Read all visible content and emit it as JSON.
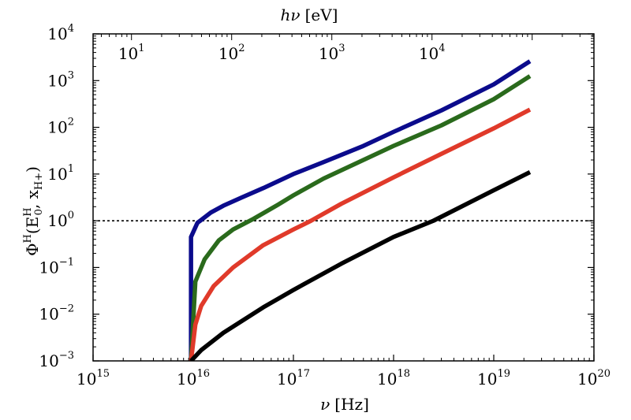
{
  "chart_data": {
    "type": "line",
    "title": "",
    "xlabel": {
      "sym": "ν",
      "unit": "[Hz]"
    },
    "ylabel": {
      "pre": "Φ",
      "sup1": "H",
      "mid": "(E",
      "sup2": "H",
      "sub2": "0",
      "sep": ", x",
      "sub3": "H+",
      "post": ")"
    },
    "x2label": {
      "sym": "hν",
      "unit": "[eV]"
    },
    "xscale": "log",
    "yscale": "log",
    "xlim": [
      1000000000000000.0,
      1e+20
    ],
    "ylim": [
      0.001,
      10000
    ],
    "x_ticks": [
      {
        "base": "10",
        "exp": "15",
        "value": 1000000000000000.0
      },
      {
        "base": "10",
        "exp": "16",
        "value": 1e+16
      },
      {
        "base": "10",
        "exp": "17",
        "value": 1e+17
      },
      {
        "base": "10",
        "exp": "18",
        "value": 1e+18
      },
      {
        "base": "10",
        "exp": "19",
        "value": 1e+19
      },
      {
        "base": "10",
        "exp": "20",
        "value": 1e+20
      }
    ],
    "y_ticks": [
      {
        "base": "10",
        "exp": "−3",
        "value": 0.001
      },
      {
        "base": "10",
        "exp": "−2",
        "value": 0.01
      },
      {
        "base": "10",
        "exp": "−1",
        "value": 0.1
      },
      {
        "base": "10",
        "exp": "0",
        "value": 1
      },
      {
        "base": "10",
        "exp": "1",
        "value": 10
      },
      {
        "base": "10",
        "exp": "2",
        "value": 100
      },
      {
        "base": "10",
        "exp": "3",
        "value": 1000
      },
      {
        "base": "10",
        "exp": "4",
        "value": 10000
      }
    ],
    "top_ticks": [
      {
        "base": "10",
        "exp": "1",
        "value_eV": 10
      },
      {
        "base": "10",
        "exp": "2",
        "value_eV": 100
      },
      {
        "base": "10",
        "exp": "3",
        "value_eV": 1000
      },
      {
        "base": "10",
        "exp": "4",
        "value_eV": 10000
      }
    ],
    "reference_line": {
      "y": 1,
      "style": "dotted",
      "color": "#000000"
    },
    "series": [
      {
        "color": "#0b0b8c",
        "x": [
          9500000000000000.0,
          9500000000000000.0,
          1.1e+16,
          1.5e+16,
          2e+16,
          3e+16,
          5e+16,
          1e+17,
          2e+17,
          5e+17,
          1e+18,
          3e+18,
          1e+19,
          2.3e+19
        ],
        "y": [
          0.001,
          0.45,
          0.9,
          1.5,
          2.1,
          3.1,
          5,
          10,
          18,
          40,
          80,
          230,
          830,
          2600
        ]
      },
      {
        "color": "#2a6a1c",
        "x": [
          9500000000000000.0,
          1.05e+16,
          1.3e+16,
          1.8e+16,
          2.5e+16,
          4e+16,
          7e+16,
          1e+17,
          2e+17,
          5e+17,
          1e+18,
          3e+18,
          1e+19,
          2.3e+19
        ],
        "y": [
          0.001,
          0.05,
          0.15,
          0.38,
          0.65,
          1.1,
          2.2,
          3.5,
          8,
          20,
          40,
          110,
          400,
          1250
        ]
      },
      {
        "color": "#e03a2a",
        "x": [
          9500000000000000.0,
          1.05e+16,
          1.2e+16,
          1.6e+16,
          2.5e+16,
          5e+16,
          1e+17,
          1.5e+17,
          3e+17,
          1e+18,
          3e+18,
          1e+19,
          2.3e+19
        ],
        "y": [
          0.001,
          0.006,
          0.015,
          0.04,
          0.1,
          0.3,
          0.65,
          1,
          2.3,
          8.5,
          27,
          95,
          240
        ]
      },
      {
        "color": "#000000",
        "x": [
          9500000000000000.0,
          1.2e+16,
          2e+16,
          5e+16,
          1e+17,
          3e+17,
          1e+18,
          2.5e+18,
          1e+19,
          2.3e+19
        ],
        "y": [
          0.001,
          0.0017,
          0.004,
          0.014,
          0.033,
          0.12,
          0.45,
          1,
          4.5,
          11
        ]
      }
    ]
  }
}
